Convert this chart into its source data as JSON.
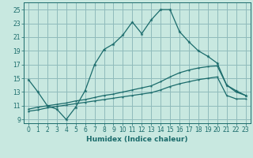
{
  "xlabel": "Humidex (Indice chaleur)",
  "bg_color": "#c8e8e0",
  "grid_color": "#90bbbb",
  "line_color": "#1a6b6b",
  "xlim": [
    -0.5,
    23.5
  ],
  "ylim": [
    8.5,
    26.0
  ],
  "xticks": [
    0,
    1,
    2,
    3,
    4,
    5,
    6,
    7,
    8,
    9,
    10,
    11,
    12,
    13,
    14,
    15,
    16,
    17,
    18,
    19,
    20,
    21,
    22,
    23
  ],
  "yticks": [
    9,
    11,
    13,
    15,
    17,
    19,
    21,
    23,
    25
  ],
  "line1_x": [
    0,
    1,
    2,
    3,
    4,
    5,
    6,
    7,
    8,
    9,
    10,
    11,
    12,
    13,
    14,
    15,
    16,
    17,
    18,
    19,
    20,
    21,
    22,
    23
  ],
  "line1_y": [
    14.8,
    13.0,
    11.0,
    10.5,
    9.0,
    10.8,
    13.2,
    17.0,
    19.2,
    20.0,
    21.3,
    23.2,
    21.5,
    23.5,
    25.0,
    25.0,
    21.8,
    20.3,
    19.0,
    18.2,
    17.2,
    14.0,
    13.2,
    12.5
  ],
  "line2_x": [
    0,
    1,
    2,
    3,
    4,
    5,
    6,
    7,
    8,
    9,
    10,
    11,
    12,
    13,
    14,
    15,
    16,
    17,
    18,
    19,
    20,
    21,
    22,
    23
  ],
  "line2_y": [
    10.5,
    10.8,
    11.0,
    11.2,
    11.4,
    11.7,
    11.9,
    12.2,
    12.5,
    12.7,
    13.0,
    13.3,
    13.6,
    13.9,
    14.5,
    15.2,
    15.8,
    16.2,
    16.5,
    16.7,
    16.8,
    14.0,
    13.0,
    12.5
  ],
  "line3_x": [
    0,
    1,
    2,
    3,
    4,
    5,
    6,
    7,
    8,
    9,
    10,
    11,
    12,
    13,
    14,
    15,
    16,
    17,
    18,
    19,
    20,
    21,
    22,
    23
  ],
  "line3_y": [
    10.2,
    10.4,
    10.7,
    10.9,
    11.1,
    11.3,
    11.5,
    11.7,
    11.9,
    12.1,
    12.3,
    12.5,
    12.7,
    12.9,
    13.3,
    13.8,
    14.2,
    14.5,
    14.8,
    15.0,
    15.2,
    12.5,
    12.0,
    12.0
  ]
}
